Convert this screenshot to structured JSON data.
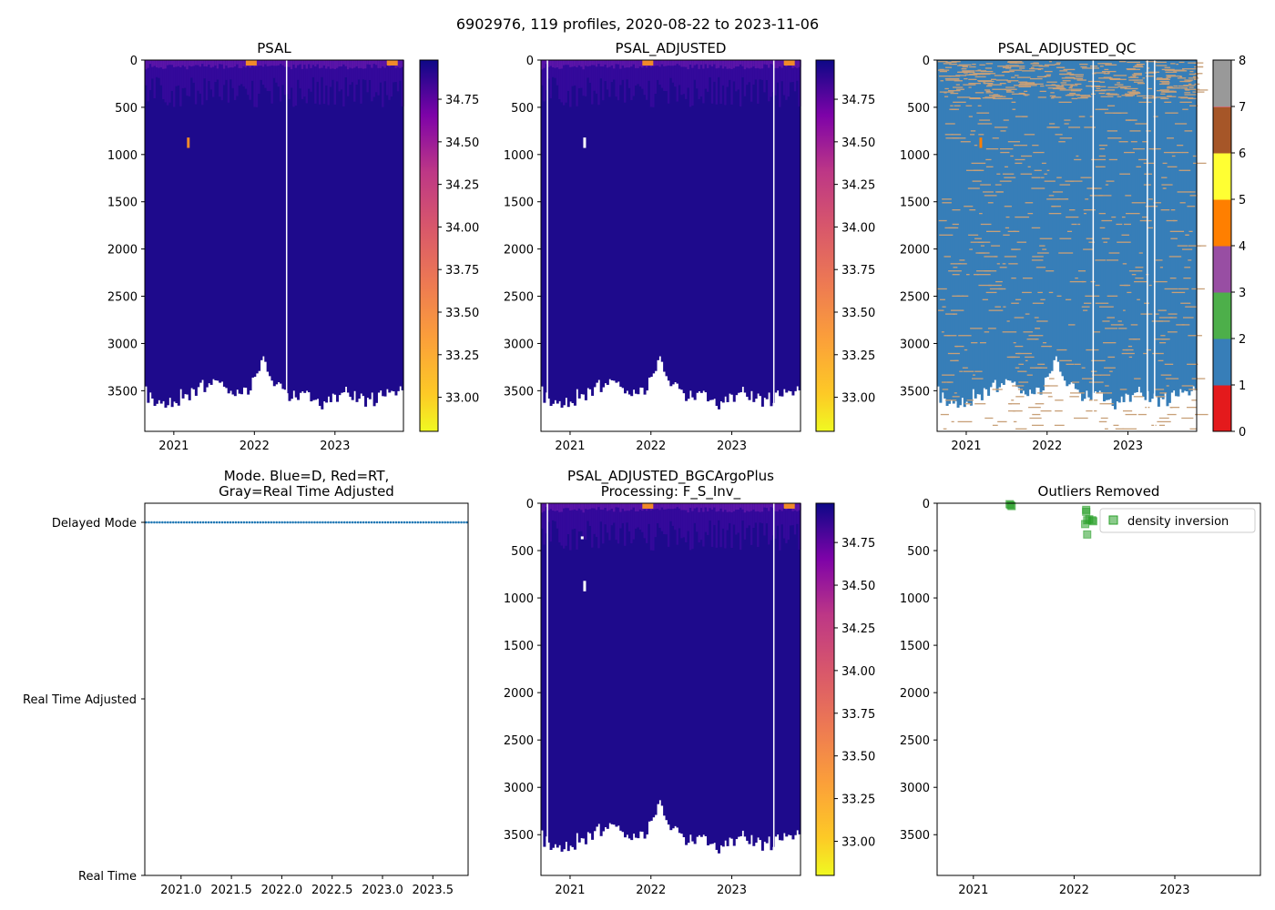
{
  "figure": {
    "suptitle": "6902976, 119 profiles, 2020-08-22 to 2023-11-06"
  },
  "colors": {
    "section_top": "#1e0a8c",
    "section_mid": "#3c0aa0",
    "section_surface": "#5a14a8",
    "surface_warm": "#f08a2a",
    "qc_cmap": [
      "#e41a1c",
      "#377eb8",
      "#4daf4a",
      "#984ea3",
      "#ff7f00",
      "#ffff33",
      "#a65628",
      "#f781bf",
      "#999999"
    ],
    "qc_flag_speck": "#c8a078",
    "mode_marker": "#1f77b4",
    "outlier_marker": "#2ca02c"
  },
  "chart_data": [
    {
      "id": "psal",
      "type": "heatmap",
      "title": "PSAL",
      "xlim": [
        2020.64,
        2023.85
      ],
      "ylim": [
        3930,
        0
      ],
      "xticks": [
        2021,
        2022,
        2023
      ],
      "xtick_labels": [
        "2021",
        "2022",
        "2023"
      ],
      "yticks": [
        0,
        500,
        1000,
        1500,
        2000,
        2500,
        3000,
        3500
      ],
      "colorbar": {
        "cmap": "plasma_r",
        "vmin": 32.8,
        "vmax": 34.98,
        "ticks": [
          33.0,
          33.25,
          33.5,
          33.75,
          34.0,
          34.25,
          34.5,
          34.75
        ],
        "tick_labels": [
          "33.00",
          "33.25",
          "33.50",
          "33.75",
          "34.00",
          "34.25",
          "34.50",
          "34.75"
        ]
      },
      "gaps": [
        2022.4
      ],
      "spike": [
        2021.18,
        820,
        930
      ]
    },
    {
      "id": "psal-adjusted",
      "type": "heatmap",
      "title": "PSAL_ADJUSTED",
      "xlim": [
        2020.64,
        2023.85
      ],
      "ylim": [
        3930,
        0
      ],
      "xticks": [
        2021,
        2022,
        2023
      ],
      "xtick_labels": [
        "2021",
        "2022",
        "2023"
      ],
      "yticks": [
        0,
        500,
        1000,
        1500,
        2000,
        2500,
        3000,
        3500
      ],
      "colorbar": {
        "cmap": "plasma_r",
        "vmin": 32.8,
        "vmax": 34.98,
        "ticks": [
          33.0,
          33.25,
          33.5,
          33.75,
          34.0,
          34.25,
          34.5,
          34.75
        ],
        "tick_labels": [
          "33.00",
          "33.25",
          "33.50",
          "33.75",
          "34.00",
          "34.25",
          "34.50",
          "34.75"
        ]
      },
      "gaps": [
        2020.72,
        2023.52
      ],
      "holes": [
        [
          2021.18,
          820,
          930
        ]
      ]
    },
    {
      "id": "psal-adjusted-qc",
      "type": "heatmap",
      "title": "PSAL_ADJUSTED_QC",
      "xlim": [
        2020.64,
        2023.85
      ],
      "ylim": [
        3930,
        0
      ],
      "xticks": [
        2021,
        2022,
        2023
      ],
      "xtick_labels": [
        "2021",
        "2022",
        "2023"
      ],
      "yticks": [
        0,
        500,
        1000,
        1500,
        2000,
        2500,
        3000,
        3500
      ],
      "dominant_flag": 1,
      "flag_rows_depth": 400,
      "colorbar": {
        "vmin": 0,
        "vmax": 8,
        "ticks": [
          0,
          1,
          2,
          3,
          4,
          5,
          6,
          7,
          8
        ],
        "tick_labels": [
          "0",
          "1",
          "2",
          "3",
          "4",
          "5",
          "6",
          "7",
          "8"
        ]
      },
      "gaps": [
        2022.57,
        2023.24,
        2023.33
      ],
      "spike": [
        2021.18,
        820,
        930
      ]
    },
    {
      "id": "mode",
      "type": "scatter",
      "title": "Mode. Blue=D, Red=RT,\nGray=Real Time Adjusted",
      "xlim": [
        2020.64,
        2023.85
      ],
      "xticks": [
        2021.0,
        2021.5,
        2022.0,
        2022.5,
        2023.0,
        2023.5
      ],
      "xtick_labels": [
        "2021.0",
        "2021.5",
        "2022.0",
        "2022.5",
        "2023.0",
        "2023.5"
      ],
      "categories": [
        "Delayed Mode",
        "Real Time Adjusted",
        "Real Time"
      ],
      "n_profiles": 119,
      "series": [
        {
          "name": "Delayed Mode",
          "category": 0
        }
      ]
    },
    {
      "id": "psal-adjusted-bgcargoplus",
      "type": "heatmap",
      "title": "PSAL_ADJUSTED_BGCArgoPlus\nProcessing: F_S_Inv_",
      "xlim": [
        2020.64,
        2023.85
      ],
      "ylim": [
        3930,
        0
      ],
      "xticks": [
        2021,
        2022,
        2023
      ],
      "xtick_labels": [
        "2021",
        "2022",
        "2023"
      ],
      "yticks": [
        0,
        500,
        1000,
        1500,
        2000,
        2500,
        3000,
        3500
      ],
      "colorbar": {
        "cmap": "plasma_r",
        "vmin": 32.8,
        "vmax": 34.98,
        "ticks": [
          33.0,
          33.25,
          33.5,
          33.75,
          34.0,
          34.25,
          34.5,
          34.75
        ],
        "tick_labels": [
          "33.00",
          "33.25",
          "33.50",
          "33.75",
          "34.00",
          "34.25",
          "34.50",
          "34.75"
        ]
      },
      "gaps": [
        2020.72,
        2023.52
      ],
      "holes": [
        [
          2021.18,
          820,
          930
        ],
        [
          2021.15,
          350,
          380
        ]
      ]
    },
    {
      "id": "outliers",
      "type": "scatter",
      "title": "Outliers Removed",
      "xlim": [
        2020.64,
        2023.85
      ],
      "ylim": [
        3930,
        0
      ],
      "xticks": [
        2021,
        2022,
        2023
      ],
      "xtick_labels": [
        "2021",
        "2022",
        "2023"
      ],
      "yticks": [
        0,
        500,
        1000,
        1500,
        2000,
        2500,
        3000,
        3500
      ],
      "legend": {
        "label": "density inversion",
        "loc": "upper right"
      },
      "series": [
        {
          "name": "density inversion",
          "x": [
            2021.36,
            2021.37,
            2021.38,
            2022.11,
            2022.12,
            2022.12,
            2022.13,
            2022.13,
            2022.15,
            2022.18,
            2022.19
          ],
          "y": [
            10,
            20,
            30,
            220,
            70,
            90,
            180,
            330,
            170,
            180,
            190
          ]
        }
      ]
    }
  ]
}
